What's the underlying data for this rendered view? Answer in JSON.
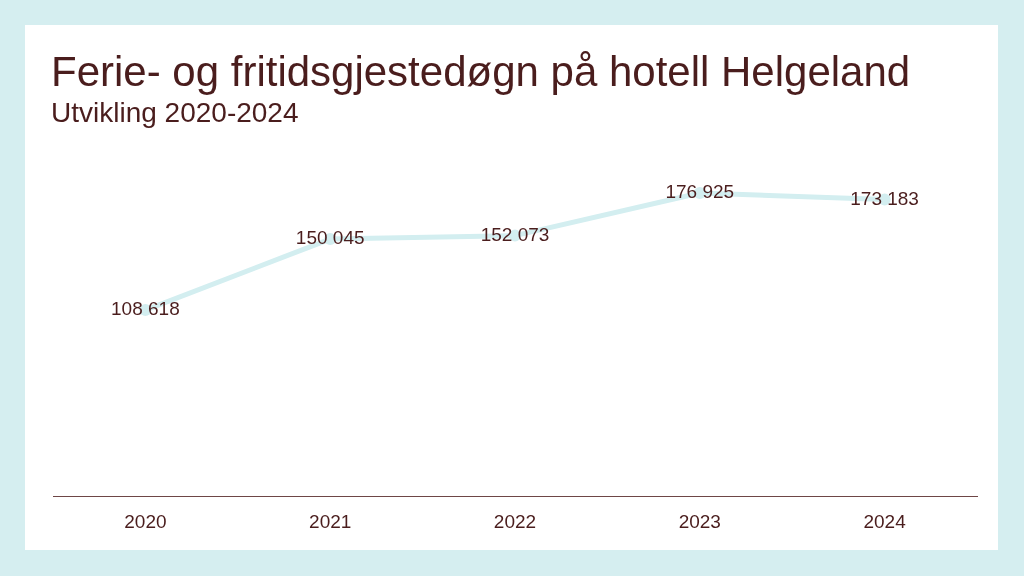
{
  "chart_data": {
    "type": "line",
    "title": "Ferie- og fritidsgjestedøgn på hotell Helgeland",
    "subtitle": "Utvikling 2020-2024",
    "categories": [
      "2020",
      "2021",
      "2022",
      "2023",
      "2024"
    ],
    "values": [
      108618,
      150045,
      152073,
      176925,
      173183
    ],
    "color": "#d3eef0",
    "value_labels": [
      "108 618",
      "150 045",
      "152 073",
      "176 925",
      "173 183"
    ],
    "marker": "circle"
  }
}
